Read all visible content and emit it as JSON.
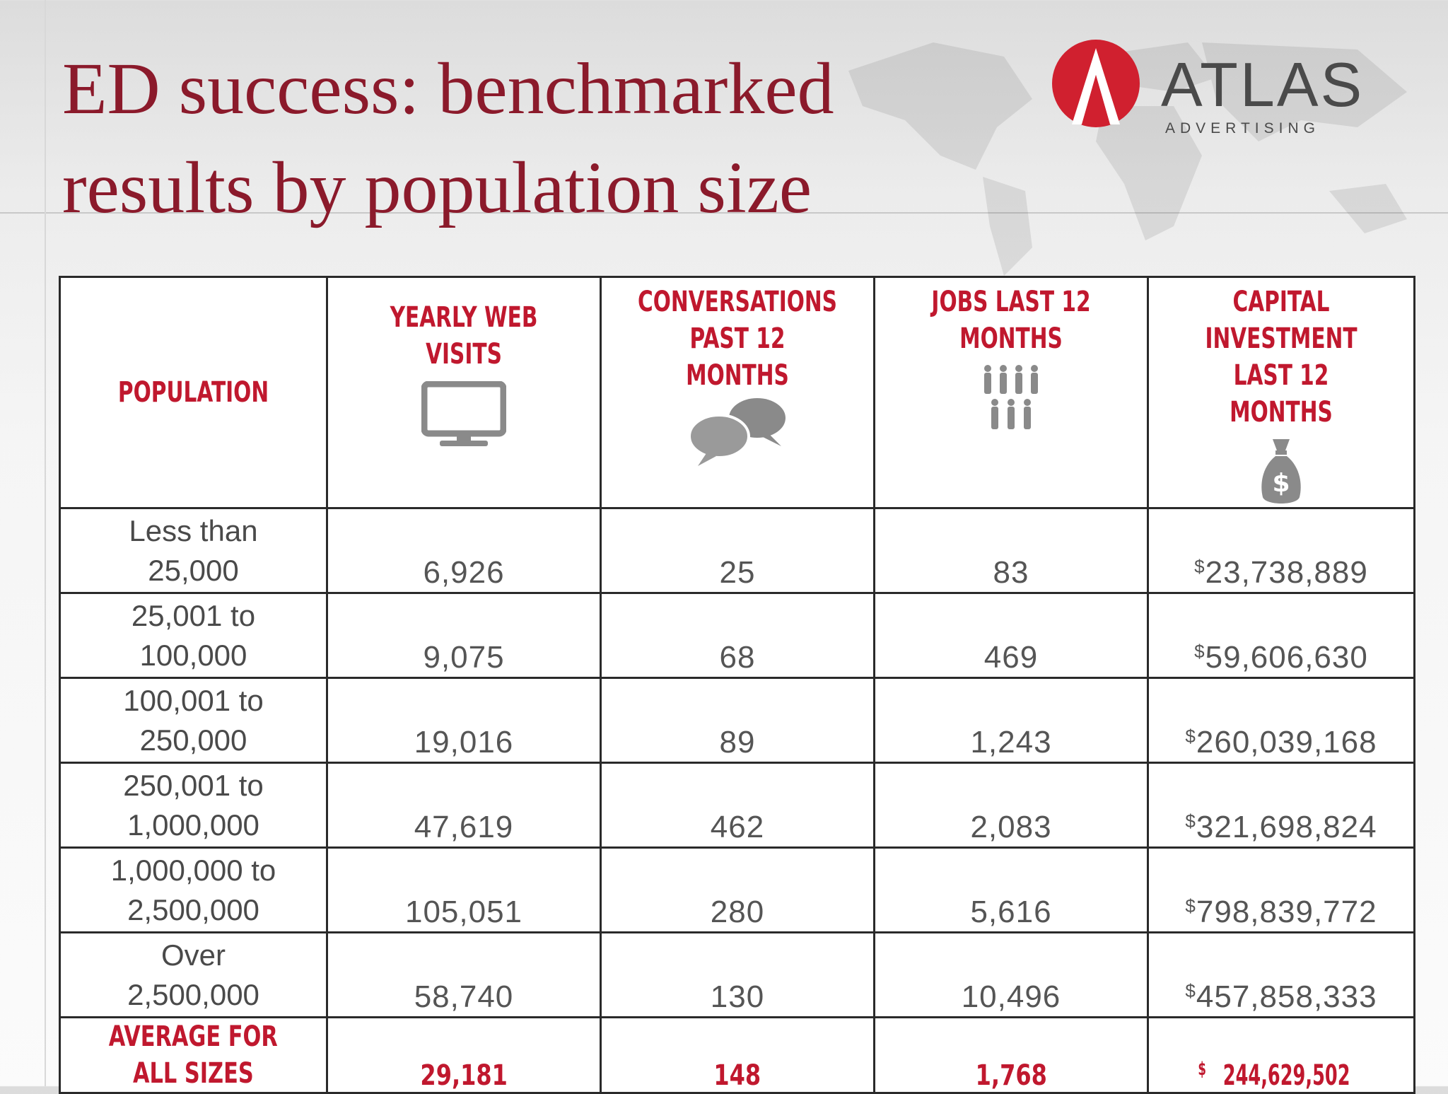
{
  "title_lines": [
    "ED success: benchmarked",
    "results by population size"
  ],
  "logo": {
    "word": "ATLAS",
    "sub": "ADVERTISING"
  },
  "table": {
    "headers": {
      "population": "POPULATION",
      "web_visits": "YEARLY WEB VISITS",
      "conversations_1": "CONVERSATIONS",
      "conversations_2": "PAST 12 MONTHS",
      "jobs_1": "JOBS LAST 12",
      "jobs_2": "MONTHS",
      "capital_1": "CAPITAL INVESTMENT",
      "capital_2": "LAST 12 MONTHS"
    },
    "header_icons": [
      "monitor-icon",
      "speech-bubbles-icon",
      "people-icon",
      "money-bag-icon"
    ],
    "rows": [
      {
        "pop1": "Less than",
        "pop2": "25,000",
        "visits": "6,926",
        "conv": "25",
        "jobs": "83",
        "cap_sym": "$",
        "cap": "23,738,889"
      },
      {
        "pop1": "25,001 to",
        "pop2": "100,000",
        "visits": "9,075",
        "conv": "68",
        "jobs": "469",
        "cap_sym": "$",
        "cap": "59,606,630"
      },
      {
        "pop1": "100,001 to",
        "pop2": "250,000",
        "visits": "19,016",
        "conv": "89",
        "jobs": "1,243",
        "cap_sym": "$",
        "cap": "260,039,168"
      },
      {
        "pop1": "250,001 to",
        "pop2": "1,000,000",
        "visits": "47,619",
        "conv": "462",
        "jobs": "2,083",
        "cap_sym": "$",
        "cap": "321,698,824"
      },
      {
        "pop1": "1,000,000 to",
        "pop2": "2,500,000",
        "visits": "105,051",
        "conv": "280",
        "jobs": "5,616",
        "cap_sym": "$",
        "cap": "798,839,772"
      },
      {
        "pop1": "Over",
        "pop2": "2,500,000",
        "visits": "58,740",
        "conv": "130",
        "jobs": "10,496",
        "cap_sym": "$",
        "cap": "457,858,333"
      }
    ],
    "average": {
      "label1": "AVERAGE FOR",
      "label2": "ALL SIZES",
      "visits": "29,181",
      "conv": "148",
      "jobs": "1,768",
      "cap_sym": "$",
      "cap": "244,629,502"
    }
  },
  "colors": {
    "title": "#8b1a2b",
    "accent_red": "#c0182e",
    "text_gray": "#555555",
    "logo_red": "#d0202f"
  }
}
